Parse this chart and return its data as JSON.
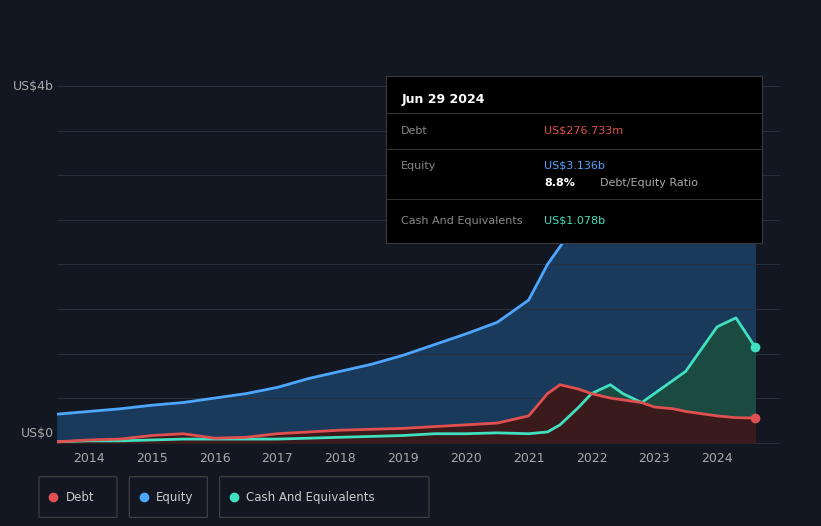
{
  "bg_color": "#131722",
  "grid_color": "#2a2f3e",
  "title_text": "Jun 29 2024",
  "ylabel_top": "US$4b",
  "ylabel_bottom": "US$0",
  "xlim": [
    2013.5,
    2025.0
  ],
  "ylim": [
    -0.05,
    4.2
  ],
  "debt_color": "#e05050",
  "equity_color": "#4da6ff",
  "cash_color": "#40e0c0",
  "equity_fill": "#1a3a5c",
  "cash_fill": "#1a4a40",
  "debt_fill": "#3a1a1a",
  "years": [
    2013.5,
    2014.0,
    2014.5,
    2015.0,
    2015.5,
    2016.0,
    2016.5,
    2017.0,
    2017.5,
    2018.0,
    2018.5,
    2019.0,
    2019.5,
    2020.0,
    2020.5,
    2021.0,
    2021.3,
    2021.5,
    2021.8,
    2022.0,
    2022.3,
    2022.5,
    2022.8,
    2023.0,
    2023.3,
    2023.5,
    2023.8,
    2024.0,
    2024.3,
    2024.6
  ],
  "equity": [
    0.32,
    0.35,
    0.38,
    0.42,
    0.45,
    0.5,
    0.55,
    0.62,
    0.72,
    0.8,
    0.88,
    0.98,
    1.1,
    1.22,
    1.35,
    1.6,
    2.0,
    2.2,
    2.5,
    2.7,
    2.85,
    2.95,
    3.05,
    3.1,
    3.15,
    3.2,
    3.3,
    3.4,
    3.55,
    3.136
  ],
  "debt": [
    0.01,
    0.03,
    0.04,
    0.08,
    0.1,
    0.05,
    0.06,
    0.1,
    0.12,
    0.14,
    0.15,
    0.16,
    0.18,
    0.2,
    0.22,
    0.3,
    0.55,
    0.65,
    0.6,
    0.55,
    0.5,
    0.48,
    0.45,
    0.4,
    0.38,
    0.35,
    0.32,
    0.3,
    0.28,
    0.2767
  ],
  "cash": [
    0.01,
    0.02,
    0.02,
    0.03,
    0.04,
    0.04,
    0.04,
    0.04,
    0.05,
    0.06,
    0.07,
    0.08,
    0.1,
    0.1,
    0.11,
    0.1,
    0.12,
    0.2,
    0.4,
    0.55,
    0.65,
    0.55,
    0.45,
    0.55,
    0.7,
    0.8,
    1.1,
    1.3,
    1.4,
    1.078
  ],
  "xtick_years": [
    2014,
    2015,
    2016,
    2017,
    2018,
    2019,
    2020,
    2021,
    2022,
    2023,
    2024
  ],
  "legend_items": [
    {
      "label": "Debt",
      "color": "#e05050"
    },
    {
      "label": "Equity",
      "color": "#4da6ff"
    },
    {
      "label": "Cash And Equivalents",
      "color": "#40e0c0"
    }
  ],
  "tooltip": {
    "title": "Jun 29 2024",
    "rows": [
      {
        "label": "Debt",
        "value": "US$276.733m",
        "value_color": "#e05050"
      },
      {
        "label": "Equity",
        "value": "US$3.136b",
        "value_color": "#4da6ff"
      },
      {
        "label": "",
        "value": "8.8% Debt/Equity Ratio",
        "value_color": "#ffffff",
        "bold_prefix": "8.8%"
      },
      {
        "label": "Cash And Equivalents",
        "value": "US$1.078b",
        "value_color": "#40e0c0"
      }
    ]
  }
}
